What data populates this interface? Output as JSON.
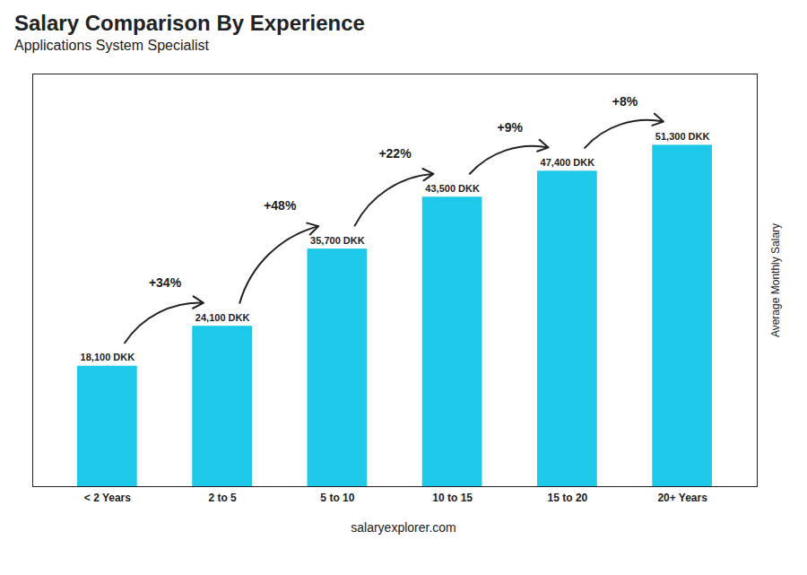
{
  "chart_data": {
    "type": "bar",
    "title": "Salary Comparison By Experience",
    "subtitle": "Applications System Specialist",
    "categories": [
      "< 2 Years",
      "2 to 5",
      "5 to 10",
      "10 to 15",
      "15 to 20",
      "20+ Years"
    ],
    "values": [
      18100,
      24100,
      35700,
      43500,
      47400,
      51300
    ],
    "value_labels": [
      "18,100 DKK",
      "24,100 DKK",
      "35,700 DKK",
      "43,500 DKK",
      "47,400 DKK",
      "51,300 DKK"
    ],
    "data_labels": true,
    "color": "#1EC8E8",
    "ylabel": "Average Monthly Salary",
    "ylim": [
      0,
      62000
    ],
    "yticks": [],
    "tick_labels": "x",
    "grid": false,
    "annotations": [
      "+34%",
      "+48%",
      "+22%",
      "+9%",
      "+8%"
    ],
    "caption": "salaryexplorer.com"
  }
}
